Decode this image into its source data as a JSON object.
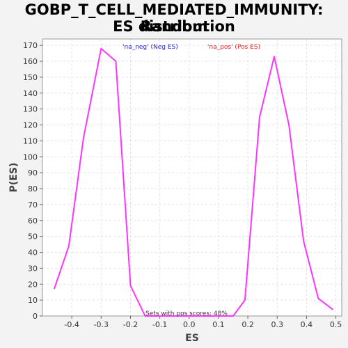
{
  "chart_data": {
    "type": "line",
    "title_lines": [
      "GOBP_T_CELL_MEDIATED_IMMUNITY: Random",
      "ES distribution"
    ],
    "xlabel": "ES",
    "ylabel": "P(ES)",
    "xlim": [
      -0.5,
      0.52
    ],
    "ylim": [
      0,
      174
    ],
    "xticks": [
      -0.4,
      -0.3,
      -0.2,
      -0.1,
      0.0,
      0.1,
      0.2,
      0.3,
      0.4,
      0.5
    ],
    "xtick_labels": [
      "-0.4",
      "-0.3",
      "-0.2",
      "-0.1",
      "0.0",
      "0.1",
      "0.2",
      "0.3",
      "0.4",
      "0.5"
    ],
    "yticks": [
      0,
      10,
      20,
      30,
      40,
      50,
      60,
      70,
      80,
      90,
      100,
      110,
      120,
      130,
      140,
      150,
      160,
      170
    ],
    "ytick_labels": [
      "0",
      "10",
      "20",
      "30",
      "40",
      "50",
      "60",
      "70",
      "80",
      "90",
      "100",
      "110",
      "120",
      "130",
      "140",
      "150",
      "160",
      "170"
    ],
    "grid": true,
    "series": [
      {
        "name": "",
        "color": "#ff33ff",
        "x": [
          -0.46,
          -0.41,
          -0.36,
          -0.3,
          -0.25,
          -0.2,
          -0.15,
          -0.1,
          -0.05,
          0.0,
          0.05,
          0.1,
          0.15,
          0.19,
          0.24,
          0.29,
          0.34,
          0.39,
          0.44,
          0.49
        ],
        "y": [
          17,
          44,
          112,
          168,
          160,
          19,
          0,
          0,
          0,
          0,
          0,
          0,
          0,
          10,
          125,
          163,
          120,
          47,
          11,
          4
        ]
      }
    ],
    "legend": [
      {
        "label": "'na_neg' (Neg ES)",
        "color": "#2020ee"
      },
      {
        "label": "'na_pos' (Pos ES)",
        "color": "#ee2020"
      }
    ],
    "annotation": "Sets with pos scores: 48%"
  }
}
